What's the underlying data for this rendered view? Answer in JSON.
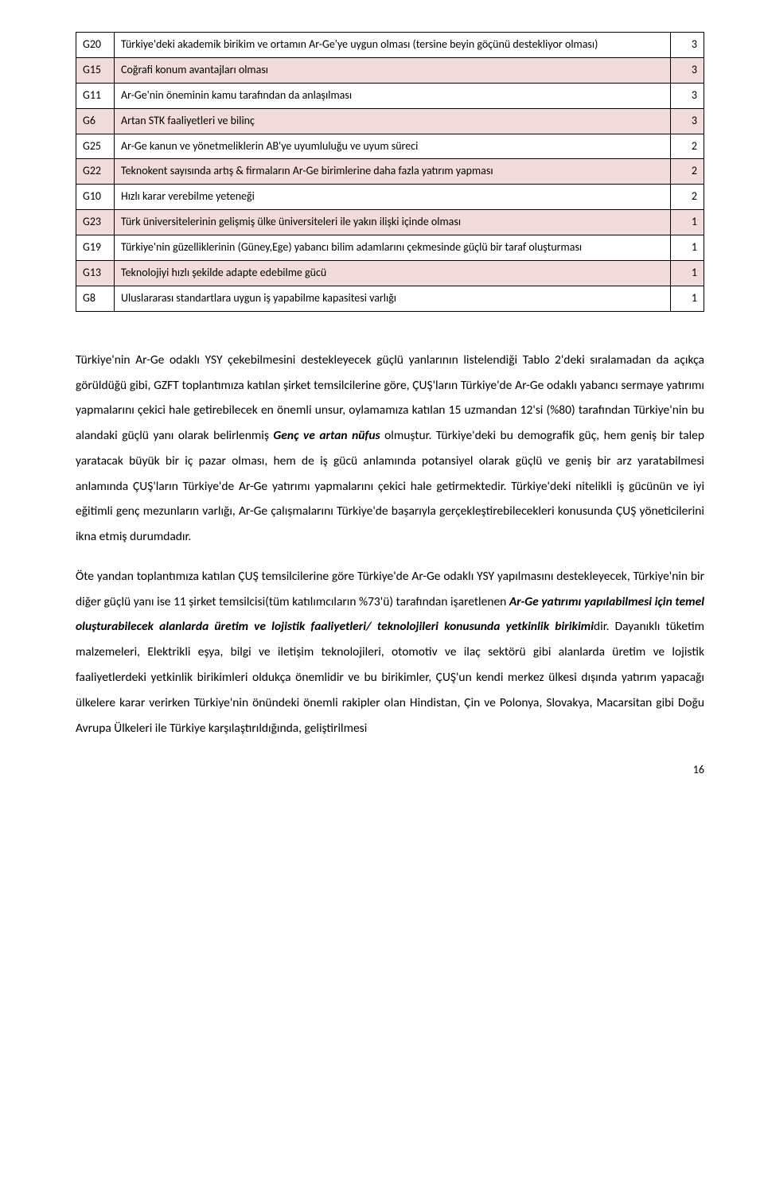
{
  "table": {
    "rows": [
      {
        "code": "G20",
        "text": "Türkiye'deki akademik birikim ve ortamın Ar-Ge'ye uygun olması (tersine beyin göçünü destekliyor olması)",
        "val": "3",
        "shaded": false
      },
      {
        "code": "G15",
        "text": "Coğrafi konum avantajları olması",
        "val": "3",
        "shaded": true
      },
      {
        "code": "G11",
        "text": "Ar-Ge'nin öneminin kamu tarafından da anlaşılması",
        "val": "3",
        "shaded": false
      },
      {
        "code": "G6",
        "text": "Artan STK faaliyetleri ve bilinç",
        "val": "3",
        "shaded": true
      },
      {
        "code": "G25",
        "text": "Ar-Ge kanun ve yönetmeliklerin AB'ye uyumluluğu ve uyum süreci",
        "val": "2",
        "shaded": false
      },
      {
        "code": "G22",
        "text": "Teknokent sayısında artış & firmaların Ar-Ge birimlerine daha fazla yatırım yapması",
        "val": "2",
        "shaded": true
      },
      {
        "code": "G10",
        "text": "Hızlı karar verebilme yeteneği",
        "val": "2",
        "shaded": false
      },
      {
        "code": "G23",
        "text": "Türk üniversitelerinin gelişmiş ülke üniversiteleri ile yakın ilişki içinde olması",
        "val": "1",
        "shaded": true
      },
      {
        "code": "G19",
        "text": "Türkiye'nin güzelliklerinin (Güney,Ege) yabancı bilim adamlarını çekmesinde güçlü bir taraf oluşturması",
        "val": "1",
        "shaded": false
      },
      {
        "code": "G13",
        "text": "Teknolojiyi hızlı şekilde adapte edebilme gücü",
        "val": "1",
        "shaded": true
      },
      {
        "code": "G8",
        "text": "Uluslararası standartlara uygun iş yapabilme kapasitesi varlığı",
        "val": "1",
        "shaded": false
      }
    ]
  },
  "paragraphs": {
    "p1_a": "Türkiye'nin Ar-Ge odaklı YSY çekebilmesini destekleyecek güçlü yanlarının listelendiği Tablo 2'deki sıralamadan da açıkça görüldüğü gibi, GZFT toplantımıza katılan şirket temsilcilerine göre, ÇUŞ'ların Türkiye'de Ar-Ge odaklı yabancı sermaye yatırımı yapmalarını çekici hale getirebilecek en önemli unsur, oylamamıza katılan 15 uzmandan 12'si (%80) tarafından Türkiye'nin bu alandaki güçlü yanı olarak belirlenmiş ",
    "p1_em": "Genç ve artan nüfus",
    "p1_b": " olmuştur. Türkiye'deki bu demografik güç, hem geniş bir talep yaratacak büyük bir iç pazar olması, hem de iş gücü anlamında potansiyel olarak güçlü ve geniş bir arz yaratabilmesi anlamında ÇUŞ'ların Türkiye'de Ar-Ge yatırımı yapmalarını çekici hale getirmektedir. Türkiye'deki nitelikli iş gücünün ve iyi eğitimli genç mezunların varlığı, Ar-Ge çalışmalarını Türkiye'de başarıyla gerçekleştirebilecekleri konusunda ÇUŞ yöneticilerini ikna etmiş durumdadır.",
    "p2_a": "Öte yandan toplantımıza katılan ÇUŞ temsilcilerine göre Türkiye'de Ar-Ge odaklı YSY yapılmasını destekleyecek, Türkiye'nin bir diğer güçlü yanı ise 11 şirket temsilcisi(tüm katılımcıların %73'ü) tarafından işaretlenen ",
    "p2_em": "Ar-Ge yatırımı yapılabilmesi için temel oluşturabilecek alanlarda üretim  ve lojistik faaliyetleri/ teknolojileri konusunda yetkinlik birikimi",
    "p2_b": "dir.  Dayanıklı tüketim malzemeleri, Elektrikli eşya, bilgi ve iletişim teknolojileri, otomotiv ve ilaç sektörü gibi alanlarda üretim ve lojistik faaliyetlerdeki yetkinlik birikimleri oldukça önemlidir ve bu birikimler, ÇUŞ'un kendi merkez ülkesi  dışında yatırım yapacağı ülkelere karar verirken Türkiye'nin önündeki önemli rakipler olan Hindistan, Çin ve Polonya, Slovakya,  Macarsitan gibi Doğu Avrupa Ülkeleri ile Türkiye karşılaştırıldığında, geliştirilmesi"
  },
  "pageNumber": "16"
}
